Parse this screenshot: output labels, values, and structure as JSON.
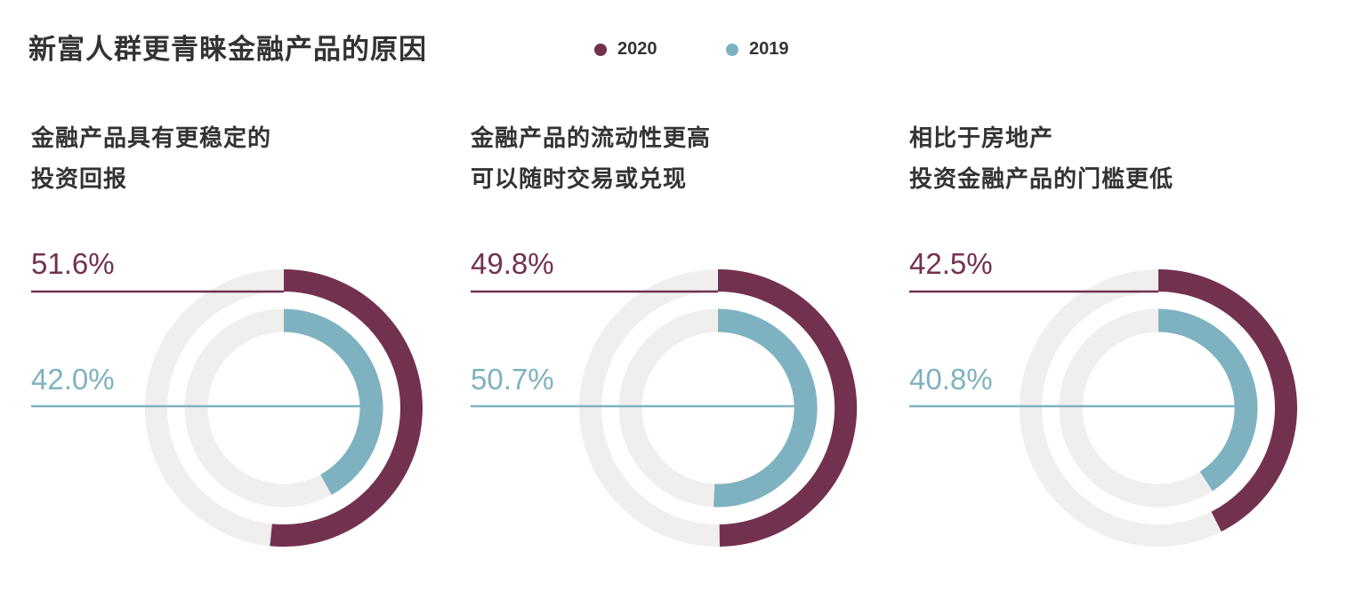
{
  "title": "新富人群更青睐金融产品的原因",
  "legend": [
    {
      "label": "2020",
      "color": "#733150"
    },
    {
      "label": "2019",
      "color": "#7fb2c0"
    }
  ],
  "colors": {
    "track": "#f0efee"
  },
  "chart_data": [
    {
      "type": "pie",
      "title_lines": [
        "金融产品具有更稳定的",
        "投资回报"
      ],
      "series": [
        {
          "name": "2020",
          "value": 51.6,
          "label": "51.6%"
        },
        {
          "name": "2019",
          "value": 42.0,
          "label": "42.0%"
        }
      ]
    },
    {
      "type": "pie",
      "title_lines": [
        "金融产品的流动性更高",
        "可以随时交易或兑现"
      ],
      "series": [
        {
          "name": "2020",
          "value": 49.8,
          "label": "49.8%"
        },
        {
          "name": "2019",
          "value": 50.7,
          "label": "50.7%"
        }
      ]
    },
    {
      "type": "pie",
      "title_lines": [
        "相比于房地产",
        "投资金融产品的门槛更低"
      ],
      "series": [
        {
          "name": "2020",
          "value": 42.5,
          "label": "42.5%"
        },
        {
          "name": "2019",
          "value": 40.8,
          "label": "40.8%"
        }
      ]
    }
  ]
}
